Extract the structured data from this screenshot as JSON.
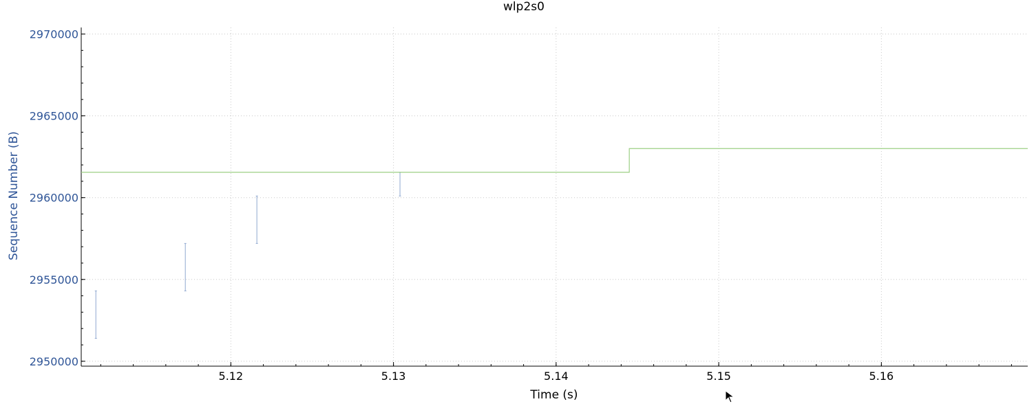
{
  "chart_data": {
    "type": "line",
    "title": "wlp2s0",
    "xlabel": "Time (s)",
    "ylabel": "Sequence Number (B)",
    "xlim": [
      5.1108,
      5.169
    ],
    "ylim": [
      2949700,
      2970400
    ],
    "xticks": [
      5.12,
      5.13,
      5.14,
      5.15,
      5.16
    ],
    "xtick_labels": [
      "5.12",
      "5.13",
      "5.14",
      "5.15",
      "5.16"
    ],
    "yticks": [
      2950000,
      2955000,
      2960000,
      2965000,
      2970000
    ],
    "ytick_labels": [
      "2950000",
      "2955000",
      "2960000",
      "2965000",
      "2970000"
    ],
    "grid": true,
    "series": [
      {
        "kind": "errorbar-segments",
        "color": "#8fa8d0",
        "segments": [
          {
            "x": 5.1117,
            "y0": 2951400,
            "y1": 2954300
          },
          {
            "x": 5.1172,
            "y0": 2954300,
            "y1": 2957200
          },
          {
            "x": 5.1216,
            "y0": 2957200,
            "y1": 2960100
          },
          {
            "x": 5.1304,
            "y0": 2960100,
            "y1": 2961550
          }
        ]
      },
      {
        "kind": "step",
        "color": "#9ccf84",
        "points": [
          {
            "x": 5.1108,
            "y": 2961550
          },
          {
            "x": 5.1445,
            "y": 2961550
          },
          {
            "x": 5.1445,
            "y": 2963000
          },
          {
            "x": 5.169,
            "y": 2963000
          }
        ]
      }
    ]
  }
}
